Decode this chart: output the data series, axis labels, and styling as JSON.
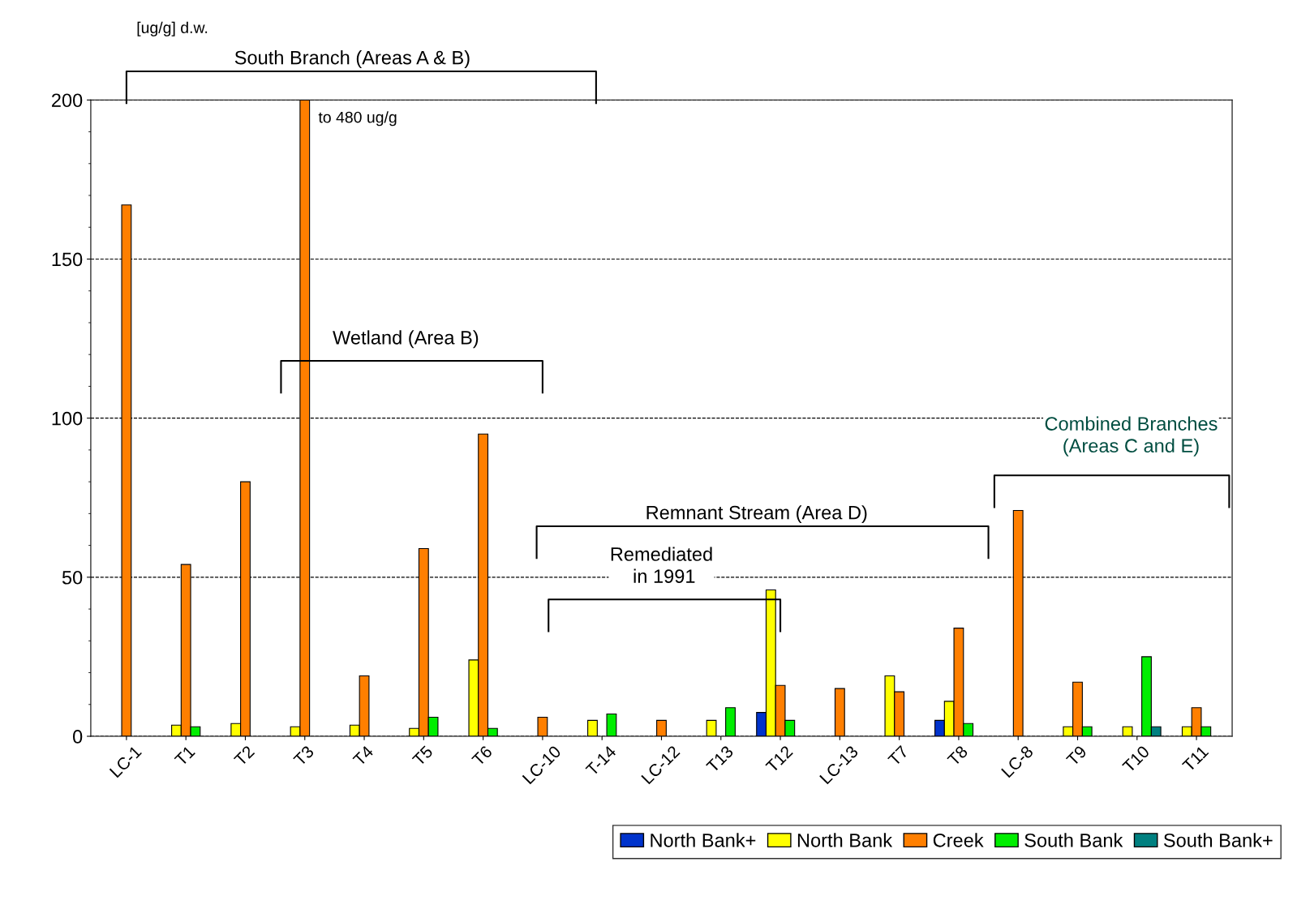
{
  "chart_data": {
    "type": "bar",
    "ylabel": "[ug/g] d.w.",
    "categories": [
      "LC-1",
      "T1",
      "T2",
      "T3",
      "T4",
      "T5",
      "T6",
      "LC-10",
      "T-14",
      "LC-12",
      "T13",
      "T12",
      "LC-13",
      "T7",
      "T8",
      "LC-8",
      "T9",
      "T10",
      "T11"
    ],
    "series": [
      {
        "name": "North Bank+",
        "color": "#0033cc",
        "values": [
          null,
          null,
          null,
          null,
          null,
          null,
          null,
          null,
          null,
          null,
          null,
          7.5,
          null,
          null,
          5,
          null,
          null,
          null,
          null
        ]
      },
      {
        "name": "North Bank",
        "color": "#ffff00",
        "values": [
          null,
          3.5,
          4,
          3,
          3.5,
          2.5,
          24,
          null,
          5,
          null,
          5,
          46,
          null,
          19,
          11,
          null,
          3,
          3,
          3
        ]
      },
      {
        "name": "Creek",
        "color": "#ff7f00",
        "values": [
          167,
          54,
          80,
          200,
          19,
          59,
          95,
          6,
          null,
          5,
          null,
          16,
          15,
          14,
          34,
          71,
          17,
          null,
          9
        ]
      },
      {
        "name": "South Bank",
        "color": "#00ee00",
        "values": [
          null,
          3,
          null,
          null,
          null,
          6,
          2.5,
          null,
          7,
          null,
          9,
          5,
          null,
          null,
          4,
          null,
          3,
          25,
          3
        ]
      },
      {
        "name": "South Bank+",
        "color": "#008080",
        "values": [
          null,
          null,
          null,
          null,
          null,
          null,
          null,
          null,
          null,
          null,
          null,
          null,
          null,
          null,
          null,
          null,
          null,
          3,
          null
        ]
      }
    ],
    "ylim": [
      0,
      200
    ],
    "yticks": [
      0,
      50,
      100,
      150,
      200
    ],
    "grid": "y",
    "legend": "bottom right",
    "annotations": [
      {
        "text": "to 480 ug/g",
        "x": "T3",
        "y": 200
      },
      "South Branch (Areas A & B)",
      "Wetland (Area B)",
      "Remnant Stream (Area D)",
      "Remediated\n in 1991",
      "Combined Branches\n(Areas C and E)"
    ]
  }
}
